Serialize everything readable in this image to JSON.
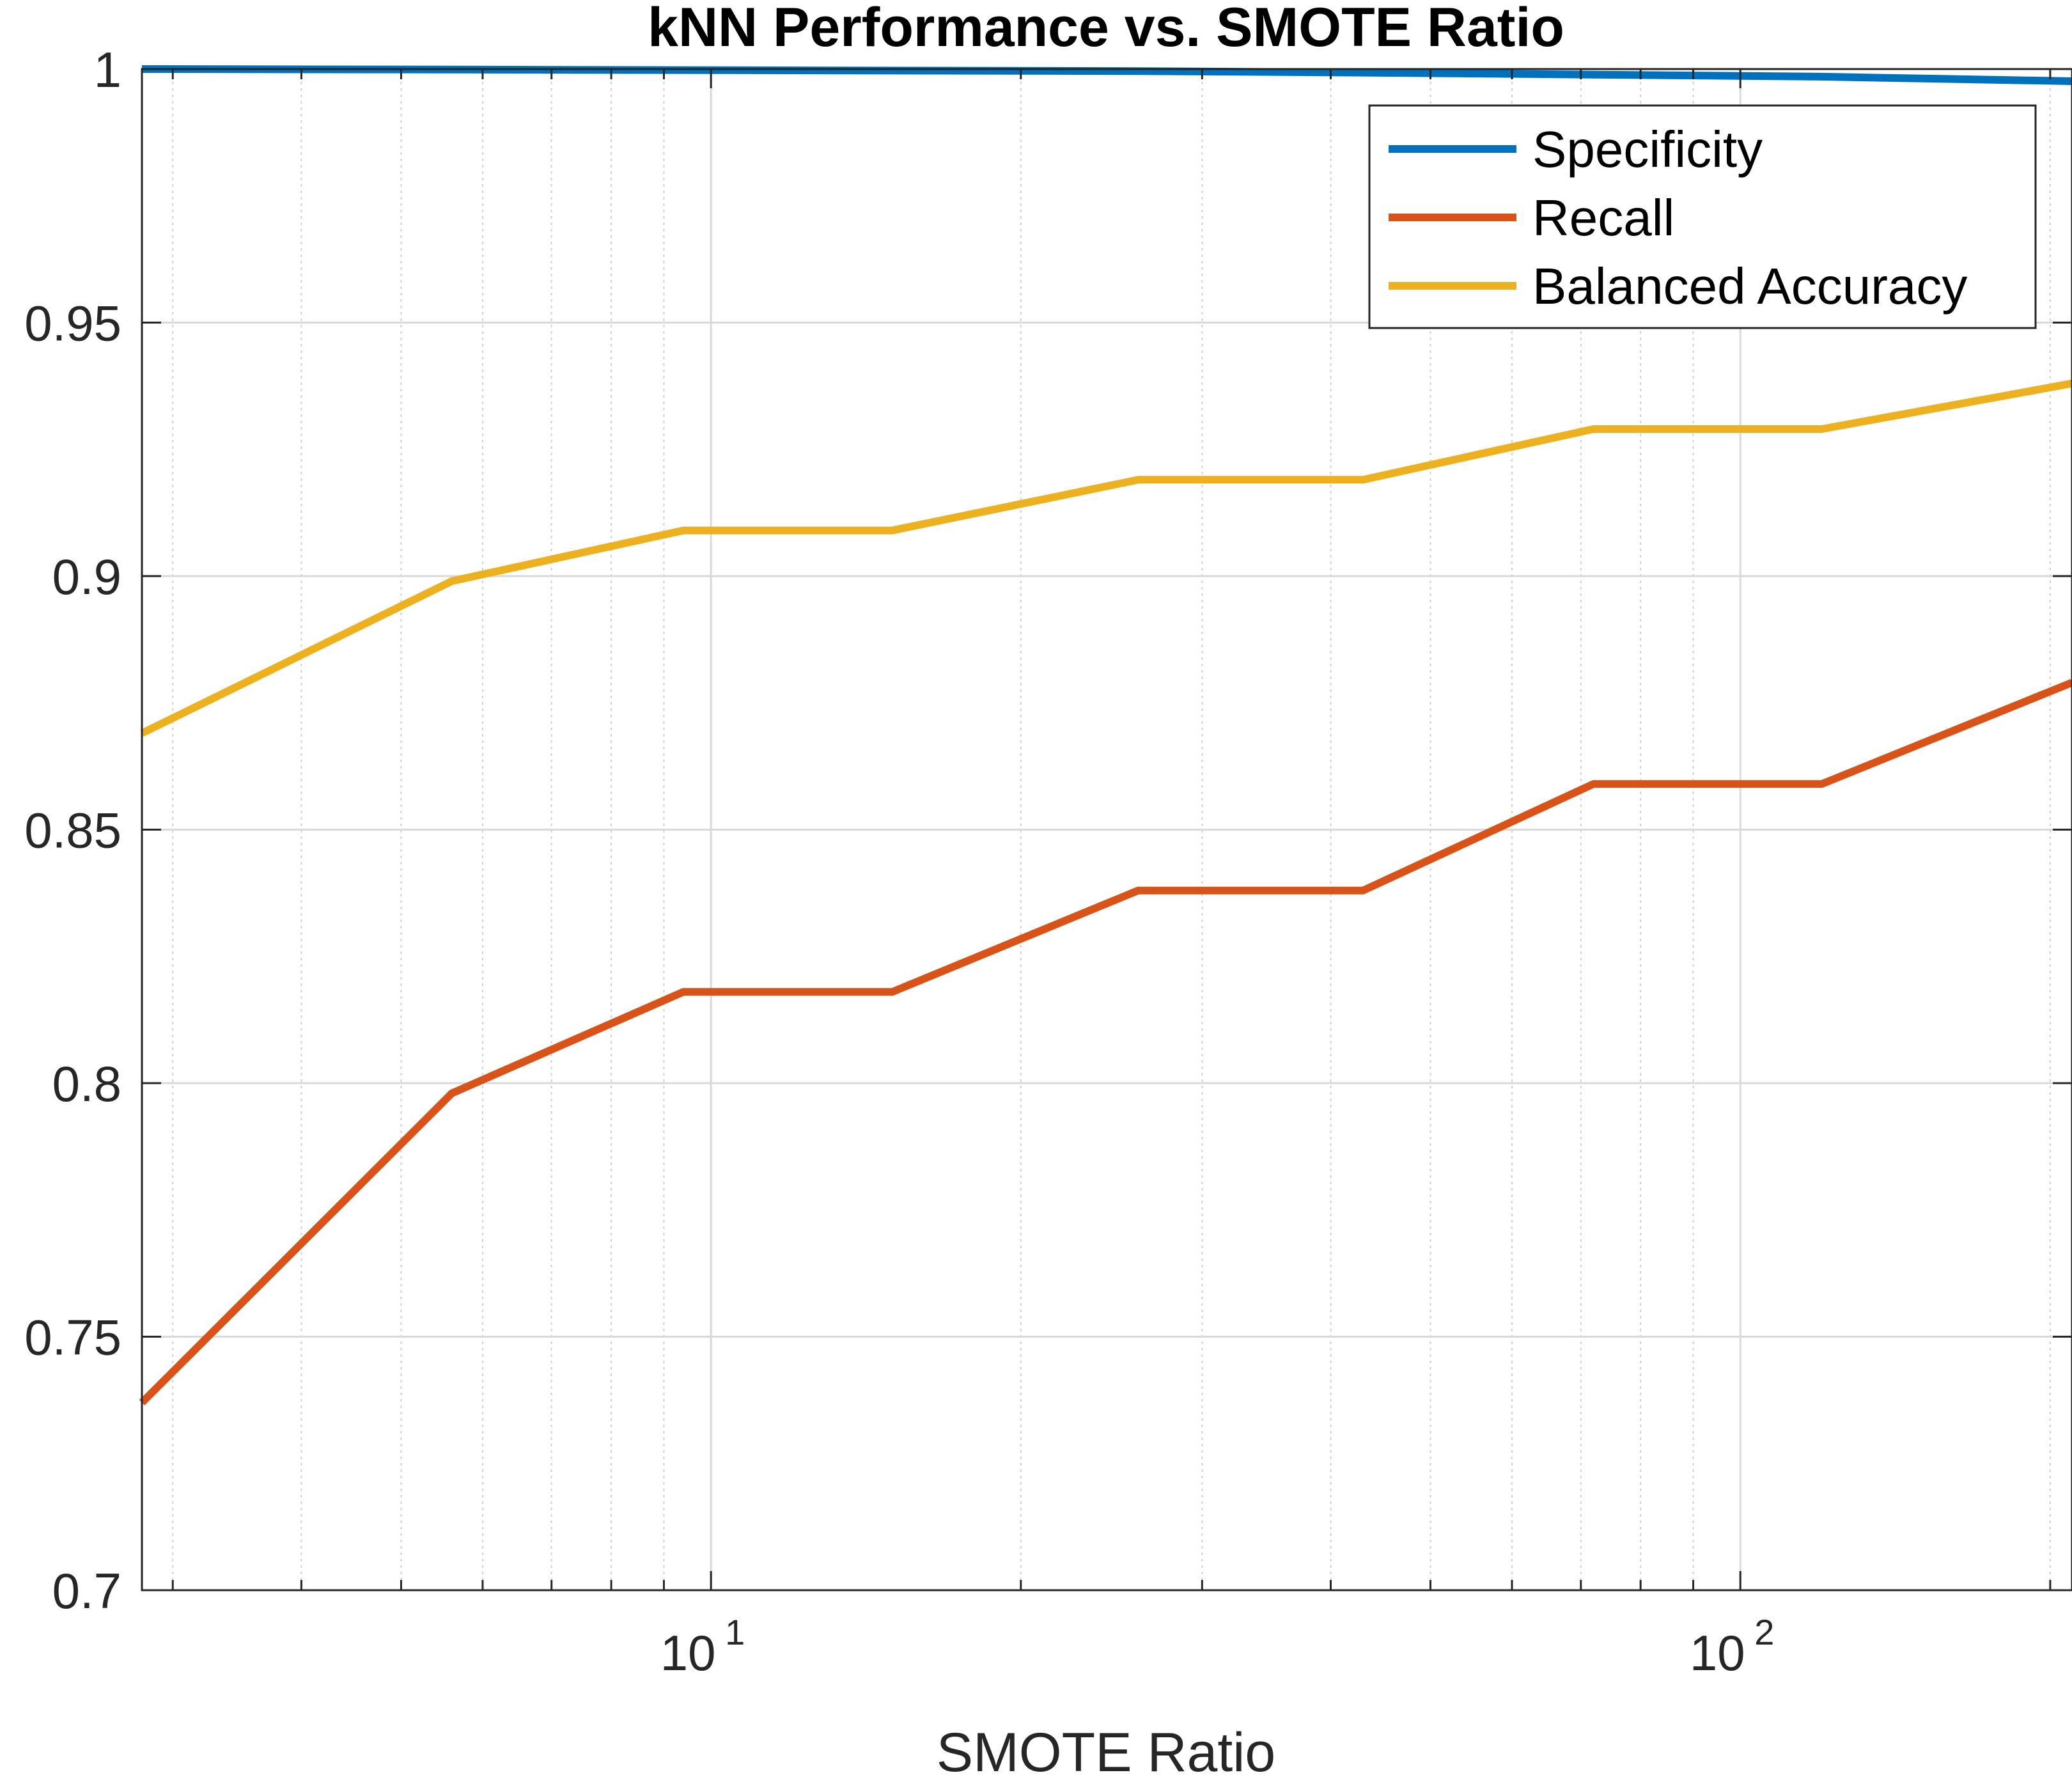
{
  "chart_data": {
    "type": "line",
    "title": "kNN Performance vs. SMOTE Ratio",
    "xlabel": "SMOTE Ratio",
    "ylabel": "",
    "xscale": "log",
    "xlim": [
      2.8,
      210
    ],
    "ylim": [
      0.7,
      1.0
    ],
    "grid": true,
    "minor_grid_x": true,
    "legend_position": "top-right",
    "xticks": [
      {
        "value": 10,
        "base": "10",
        "exp": "1"
      },
      {
        "value": 100,
        "base": "10",
        "exp": "2"
      }
    ],
    "yticks": [
      {
        "value": 0.7,
        "label": "0.7"
      },
      {
        "value": 0.75,
        "label": "0.75"
      },
      {
        "value": 0.8,
        "label": "0.8"
      },
      {
        "value": 0.85,
        "label": "0.85"
      },
      {
        "value": 0.9,
        "label": "0.9"
      },
      {
        "value": 0.95,
        "label": "0.95"
      },
      {
        "value": 1.0,
        "label": "1"
      }
    ],
    "x": [
      2.8,
      5.6,
      9.4,
      15,
      26,
      43,
      72,
      120,
      210
    ],
    "series": [
      {
        "name": "Specificity",
        "color": "#0072BD",
        "values": [
          1.0,
          0.9999,
          0.9998,
          0.9997,
          0.9996,
          0.9993,
          0.9989,
          0.9985,
          0.9976
        ]
      },
      {
        "name": "Recall",
        "color": "#D95319",
        "values": [
          0.737,
          0.798,
          0.818,
          0.818,
          0.838,
          0.838,
          0.859,
          0.859,
          0.879
        ]
      },
      {
        "name": "Balanced Accuracy",
        "color": "#EDB120",
        "values": [
          0.869,
          0.899,
          0.909,
          0.909,
          0.919,
          0.919,
          0.929,
          0.929,
          0.938
        ]
      }
    ]
  }
}
